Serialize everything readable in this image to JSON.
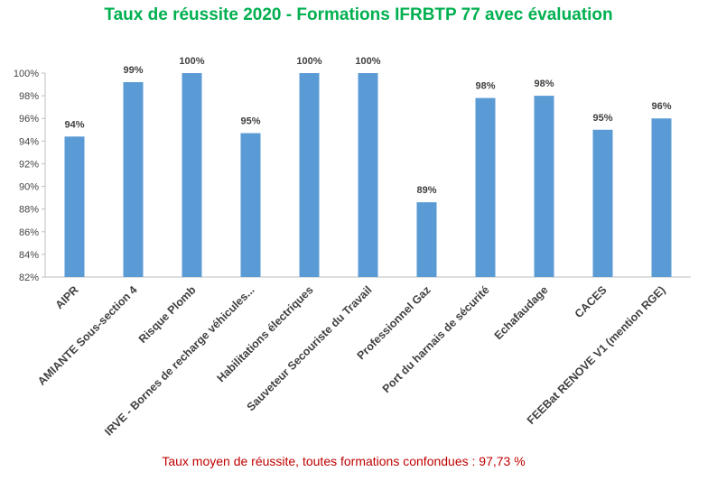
{
  "chart_data": {
    "type": "bar",
    "title": "Taux de réussite 2020 - Formations IFRBTP 77 avec évaluation",
    "categories": [
      "AIPR",
      "AMIANTE Sous-section 4",
      "Risque Plomb",
      "IRVE - Bornes de recharge véhicules...",
      "Habilitations électriques",
      "Sauveteur Secouriste du Travail",
      "Professionnel Gaz",
      "Port du harnais de sécurité",
      "Echafaudage",
      "CACES",
      "FEEBat RENOVE V1 (mention RGE)"
    ],
    "values": [
      94.4,
      99.2,
      100,
      94.7,
      100,
      100,
      88.6,
      97.8,
      98.0,
      95.0,
      96.0
    ],
    "data_labels": [
      "94%",
      "99%",
      "100%",
      "95%",
      "100%",
      "100%",
      "89%",
      "98%",
      "98%",
      "95%",
      "96%"
    ],
    "yticks": [
      "82%",
      "84%",
      "86%",
      "88%",
      "90%",
      "92%",
      "94%",
      "96%",
      "98%",
      "100%"
    ],
    "ylim": [
      82,
      100
    ],
    "grid": false,
    "bar_color": "#5b9bd5",
    "title_color": "#00b050"
  },
  "footnote": "Taux moyen de réussite, toutes formations confondues : 97,73 %"
}
